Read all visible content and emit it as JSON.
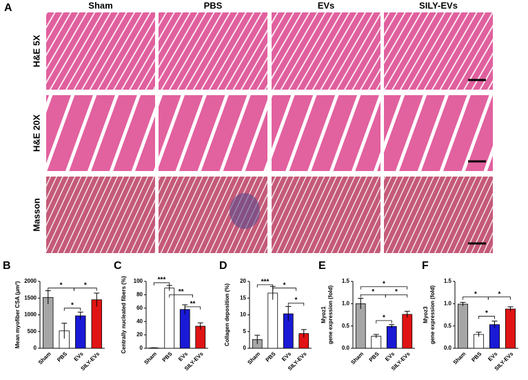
{
  "panel_a": {
    "panel": "A",
    "columns": [
      "Sham",
      "PBS",
      "EVs",
      "SILY-EVs"
    ],
    "rows": [
      "H&E 5X",
      "H&E 20X",
      "Masson"
    ]
  },
  "chart_data": [
    {
      "type": "bar",
      "panel": "B",
      "ylabel": [
        "Mean myofiber CSA (μm²)"
      ],
      "categories": [
        "Sham",
        "PBS",
        "EVs",
        "SILY-EVs"
      ],
      "values": [
        1520,
        520,
        970,
        1450
      ],
      "errors": [
        200,
        230,
        110,
        200
      ],
      "colors": [
        "#a6a6a6",
        "#ffffff",
        "#1a1ad6",
        "#e01414"
      ],
      "ylim": [
        0,
        2000
      ],
      "yticks": [
        0,
        500,
        1000,
        1500,
        2000
      ],
      "annotations": [
        "*",
        "*",
        "*"
      ]
    },
    {
      "type": "bar",
      "panel": "C",
      "ylabel": [
        "Centrally nucleated fibers (%)"
      ],
      "categories": [
        "Sham",
        "PBS",
        "EVs",
        "SILY-EVs"
      ],
      "values": [
        0.5,
        90,
        58,
        33
      ],
      "errors": [
        0.3,
        4,
        7,
        5
      ],
      "colors": [
        "#a6a6a6",
        "#ffffff",
        "#1a1ad6",
        "#e01414"
      ],
      "ylim": [
        0,
        100
      ],
      "yticks": [
        0,
        20,
        40,
        60,
        80,
        100
      ],
      "annotations": [
        "***",
        "**",
        "**"
      ]
    },
    {
      "type": "bar",
      "panel": "D",
      "ylabel": [
        "Collagen deposition (%)"
      ],
      "categories": [
        "Sham",
        "PBS",
        "EVs",
        "SILY-EVs"
      ],
      "values": [
        2.6,
        16.5,
        10.3,
        4.4
      ],
      "errors": [
        1.3,
        2,
        2.2,
        1.2
      ],
      "colors": [
        "#a6a6a6",
        "#ffffff",
        "#1a1ad6",
        "#e01414"
      ],
      "ylim": [
        0,
        20
      ],
      "yticks": [
        0,
        5,
        10,
        15,
        20
      ],
      "annotations": [
        "***",
        "*",
        "*"
      ]
    },
    {
      "type": "bar",
      "panel": "E",
      "ylabel": [
        "Myoz1",
        "gene expression (fold)"
      ],
      "categories": [
        "Sham",
        "PBS",
        "EVs",
        "SILY-EVs"
      ],
      "values": [
        1.0,
        0.27,
        0.49,
        0.76
      ],
      "errors": [
        0.12,
        0.04,
        0.04,
        0.07
      ],
      "colors": [
        "#a6a6a6",
        "#ffffff",
        "#1a1ad6",
        "#e01414"
      ],
      "ylim": [
        0,
        1.5
      ],
      "yticks": [
        {
          "value": 0,
          "label": "0.0"
        },
        0.5,
        {
          "value": 1,
          "label": "1.0"
        },
        1.5
      ],
      "annotations": [
        "*",
        "*",
        "*",
        "*"
      ]
    },
    {
      "type": "bar",
      "panel": "F",
      "ylabel": [
        "Myoz3",
        "gene expression (fold)"
      ],
      "categories": [
        "Sham",
        "PBS",
        "EVs",
        "SILY-EVs"
      ],
      "values": [
        0.99,
        0.31,
        0.53,
        0.88
      ],
      "errors": [
        0.04,
        0.05,
        0.08,
        0.05
      ],
      "colors": [
        "#a6a6a6",
        "#ffffff",
        "#1a1ad6",
        "#e01414"
      ],
      "ylim": [
        0,
        1.5
      ],
      "yticks": [
        {
          "value": 0,
          "label": "0.0"
        },
        0.5,
        {
          "value": 1,
          "label": "1.0"
        },
        1.5
      ],
      "annotations": [
        "*",
        "*",
        "*"
      ]
    }
  ]
}
